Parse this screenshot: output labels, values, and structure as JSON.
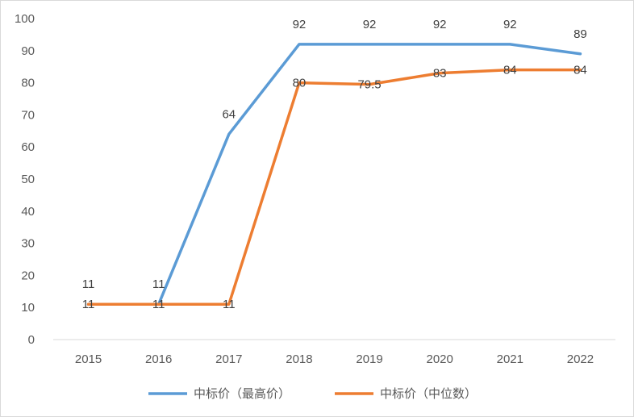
{
  "chart_data": {
    "type": "line",
    "categories": [
      "2015",
      "2016",
      "2017",
      "2018",
      "2019",
      "2020",
      "2021",
      "2022"
    ],
    "series": [
      {
        "name": "中标价（最高价）",
        "color": "#5b9bd5",
        "values": [
          11,
          11,
          64,
          92,
          92,
          92,
          92,
          89
        ],
        "labels": [
          "11",
          "11",
          "64",
          "92",
          "92",
          "92",
          "92",
          "89"
        ]
      },
      {
        "name": "中标价（中位数）",
        "color": "#ed7d31",
        "values": [
          11,
          11,
          11,
          80,
          79.5,
          83,
          84,
          84
        ],
        "labels": [
          "11",
          "11",
          "11",
          "80",
          "79.5",
          "83",
          "84",
          "84"
        ]
      }
    ],
    "title": "",
    "xlabel": "",
    "ylabel": "",
    "ylim": [
      0,
      100
    ],
    "yticks": [
      "0",
      "10",
      "20",
      "30",
      "40",
      "50",
      "60",
      "70",
      "80",
      "90",
      "100"
    ],
    "grid": false,
    "legend": "bottom"
  }
}
